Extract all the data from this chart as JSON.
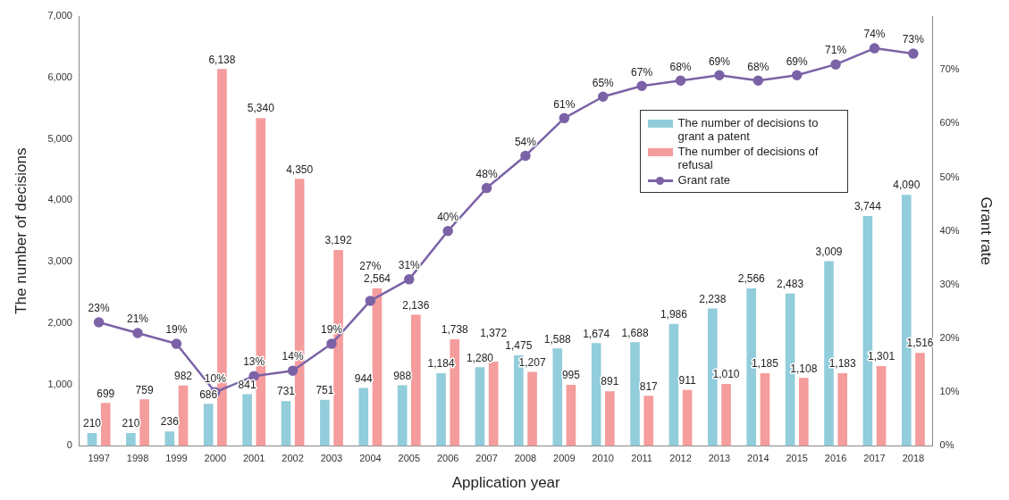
{
  "chart_data": {
    "type": "bar",
    "xlabel": "Application year",
    "ylabel": "The number of decisions",
    "y2label": "Grant rate",
    "categories": [
      "1997",
      "1998",
      "1999",
      "2000",
      "2001",
      "2002",
      "2003",
      "2004",
      "2005",
      "2006",
      "2007",
      "2008",
      "2009",
      "2010",
      "2011",
      "2012",
      "2013",
      "2014",
      "2015",
      "2016",
      "2017",
      "2018"
    ],
    "series": [
      {
        "name": "The number of decisions to grant a patent",
        "type": "bar",
        "color": "#92cddc",
        "values": [
          210,
          210,
          236,
          686,
          841,
          731,
          751,
          944,
          988,
          1184,
          1280,
          1475,
          1588,
          1674,
          1688,
          1986,
          2238,
          2566,
          2483,
          3009,
          3744,
          4090
        ],
        "value_labels": [
          "210",
          "210",
          "236",
          "686",
          "841",
          "731",
          "751",
          "944",
          "988",
          "1,184",
          "1,280",
          "1,475",
          "1,588",
          "1,674",
          "1,688",
          "1,986",
          "2,238",
          "2,566",
          "2,483",
          "3,009",
          "3,744",
          "4,090"
        ]
      },
      {
        "name": "The number of decisions of refusal",
        "type": "bar",
        "color": "#f59c9c",
        "values": [
          699,
          759,
          982,
          6138,
          5340,
          4350,
          3192,
          2564,
          2136,
          1738,
          1372,
          1207,
          995,
          891,
          817,
          911,
          1010,
          1185,
          1108,
          1183,
          1301,
          1516
        ],
        "value_labels": [
          "699",
          "759",
          "982",
          "6,138",
          "5,340",
          "4,350",
          "3,192",
          "2,564",
          "2,136",
          "1,738",
          "1,372",
          "1,207",
          "995",
          "891",
          "817",
          "911",
          "1,010",
          "1,185",
          "1,108",
          "1,183",
          "1,301",
          "1,516"
        ]
      },
      {
        "name": "Grant rate",
        "type": "line",
        "axis": "y2",
        "color": "#7b62a6",
        "marker": "circle",
        "values": [
          23,
          21,
          19,
          10,
          13,
          14,
          19,
          27,
          31,
          40,
          48,
          54,
          61,
          65,
          67,
          68,
          69,
          68,
          69,
          71,
          74,
          73
        ],
        "value_labels": [
          "23%",
          "21%",
          "19%",
          "10%",
          "13%",
          "14%",
          "19%",
          "27%",
          "31%",
          "40%",
          "48%",
          "54%",
          "61%",
          "65%",
          "67%",
          "68%",
          "69%",
          "68%",
          "69%",
          "71%",
          "74%",
          "73%"
        ]
      }
    ],
    "ylim": [
      0,
      7000
    ],
    "yticks": [
      0,
      {
        "value": 1000,
        "label": "1,000"
      },
      {
        "value": 2000,
        "label": "2,000"
      },
      {
        "value": 3000,
        "label": "3,000"
      },
      {
        "value": 4000,
        "label": "4,000"
      },
      {
        "value": 5000,
        "label": "5,000"
      },
      {
        "value": 6000,
        "label": "6,000"
      },
      {
        "value": 7000,
        "label": "7,000"
      }
    ],
    "y2lim": [
      0,
      80
    ],
    "y2ticks": [
      {
        "value": 0,
        "label": "0%"
      },
      {
        "value": 10,
        "label": "10%"
      },
      {
        "value": 20,
        "label": "20%"
      },
      {
        "value": 30,
        "label": "30%"
      },
      {
        "value": 40,
        "label": "40%"
      },
      {
        "value": 50,
        "label": "50%"
      },
      {
        "value": 60,
        "label": "60%"
      },
      {
        "value": 70,
        "label": "70%"
      }
    ],
    "legend": "top right",
    "grid": false
  }
}
